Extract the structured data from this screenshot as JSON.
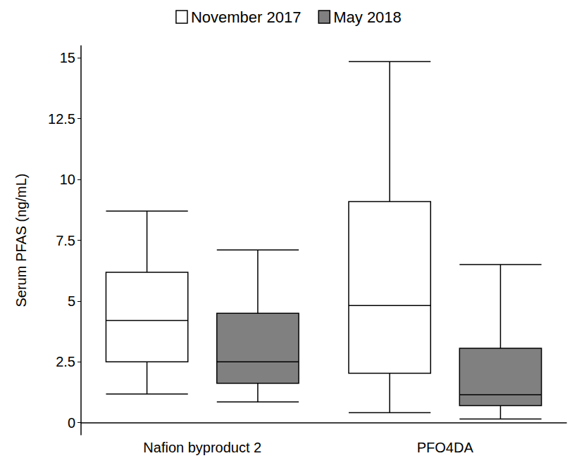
{
  "chart_data": {
    "type": "boxplot",
    "y_label": "Serum PFAS (ng/mL)",
    "categories": [
      "Nafion byproduct 2",
      "PFO4DA"
    ],
    "series": [
      {
        "name": "November 2017",
        "color": "#ffffff",
        "values": [
          [
            1.18,
            2.5,
            4.2,
            6.18,
            8.7
          ],
          [
            0.41,
            2.03,
            4.82,
            9.09,
            14.85
          ]
        ]
      },
      {
        "name": "May 2018",
        "color": "#808080",
        "values": [
          [
            0.85,
            1.62,
            2.5,
            4.5,
            7.1
          ],
          [
            0.15,
            0.7,
            1.15,
            3.06,
            6.5
          ]
        ]
      }
    ],
    "ylim": [
      -0.5,
      15.5
    ],
    "yticks": [
      0,
      2.5,
      5,
      7.5,
      10,
      12.5,
      15
    ],
    "grid": false,
    "legend": "top"
  }
}
